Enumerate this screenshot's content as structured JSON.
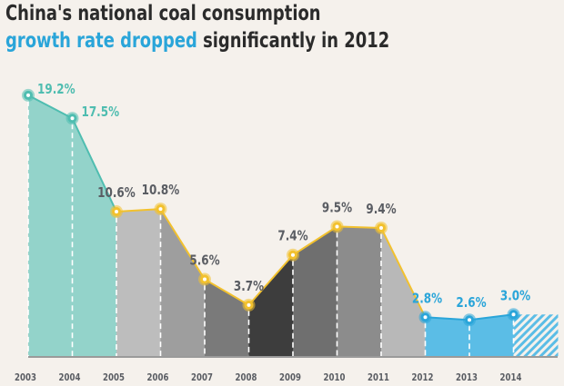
{
  "title": {
    "line1": "China's national coal consumption",
    "line2_highlight": "growth rate dropped",
    "line2_rest": " significantly in 2012"
  },
  "colors": {
    "background": "#f5f1ec",
    "teal": "#93d3ca",
    "teal_line": "#4fbdb0",
    "gold": "#f2c12e",
    "blue": "#5bbde6",
    "blue_line": "#2aa5d9",
    "label_gray": "#5a5d63",
    "band_fills": [
      "#93d3ca",
      "#93d3ca",
      "#bdbdbd",
      "#9e9e9e",
      "#7a7a7a",
      "#3d3d3d",
      "#6f6f6f",
      "#8c8c8c",
      "#b8b8b8",
      "#5bbde6",
      "#5bbde6",
      "hatch"
    ]
  },
  "chart_data": {
    "type": "area",
    "title": "China's national coal consumption growth rate dropped significantly in 2012",
    "xlabel": "",
    "ylabel": "",
    "categories": [
      "2003",
      "2004",
      "2005",
      "2006",
      "2007",
      "2008",
      "2009",
      "2010",
      "2011",
      "2012",
      "2013",
      "2014"
    ],
    "values": [
      19.2,
      17.5,
      10.6,
      10.8,
      5.6,
      3.7,
      7.4,
      9.5,
      9.4,
      2.8,
      2.6,
      3.0
    ],
    "labels": [
      "19.2%",
      "17.5%",
      "10.6%",
      "10.8%",
      "5.6%",
      "3.7%",
      "7.4%",
      "9.5%",
      "9.4%",
      "2.8%",
      "2.6%",
      "3.0%"
    ],
    "segment_colors": [
      "teal",
      "teal",
      "gold",
      "gold",
      "gold",
      "gold",
      "gold",
      "gold",
      "gold",
      "blue",
      "blue",
      "blue"
    ],
    "ylim": [
      0,
      20
    ],
    "grid": false,
    "legend": "none"
  }
}
